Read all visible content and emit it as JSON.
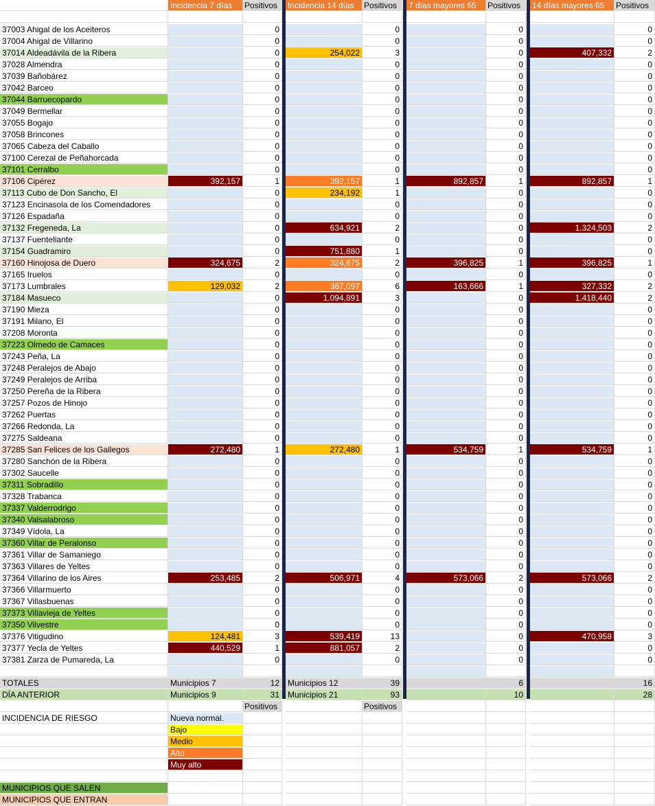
{
  "headers": {
    "inc7": "Incidencia 7 días",
    "pos1": "Positivos",
    "inc14": "Incidencia 14 días",
    "pos2": "Positivos",
    "may7": "7 días mayores 65",
    "pos3": "Positivos",
    "may14": "14 días mayores 65",
    "pos4": "Positivos"
  },
  "colors": {
    "header": "#ed7d31",
    "nueva_normal": "#dce9f5",
    "bajo": "#ffff00",
    "medio": "#ffc000",
    "alto": "#ff7c26",
    "muy_alto": "#7b0000",
    "salen": "#92d050",
    "entran": "#fbe4d5",
    "separator": "#17254f"
  },
  "rows": [
    {
      "name": "37003 Ahigal de los Aceiteros",
      "hl": "",
      "inc7": "",
      "l7": "",
      "p7": "0",
      "inc14": "",
      "l14": "",
      "p14": "0",
      "m7": "",
      "lm7": "",
      "pm7": "0",
      "m14": "",
      "lm14": "",
      "pm14": "0"
    },
    {
      "name": "37004 Ahigal de Villarino",
      "hl": "",
      "inc7": "",
      "l7": "",
      "p7": "0",
      "inc14": "",
      "l14": "",
      "p14": "0",
      "m7": "",
      "lm7": "",
      "pm7": "0",
      "m14": "",
      "lm14": "",
      "pm14": "0"
    },
    {
      "name": "37014 Aldeadávila de la Ribera",
      "hl": "g-light",
      "inc7": "",
      "l7": "",
      "p7": "0",
      "inc14": "254,022",
      "l14": "lvl-medio",
      "p14": "3",
      "m7": "",
      "lm7": "",
      "pm7": "0",
      "m14": "407,332",
      "lm14": "lvl-muyalto",
      "pm14": "2"
    },
    {
      "name": "37028 Almendra",
      "hl": "",
      "inc7": "",
      "l7": "",
      "p7": "0",
      "inc14": "",
      "l14": "",
      "p14": "0",
      "m7": "",
      "lm7": "",
      "pm7": "0",
      "m14": "",
      "lm14": "",
      "pm14": "0"
    },
    {
      "name": "37039 Bañobárez",
      "hl": "",
      "inc7": "",
      "l7": "",
      "p7": "0",
      "inc14": "",
      "l14": "",
      "p14": "0",
      "m7": "",
      "lm7": "",
      "pm7": "0",
      "m14": "",
      "lm14": "",
      "pm14": "0"
    },
    {
      "name": "37042 Barceo",
      "hl": "",
      "inc7": "",
      "l7": "",
      "p7": "0",
      "inc14": "",
      "l14": "",
      "p14": "0",
      "m7": "",
      "lm7": "",
      "pm7": "0",
      "m14": "",
      "lm14": "",
      "pm14": "0"
    },
    {
      "name": "37044 Barruecopardo",
      "hl": "g-dark",
      "inc7": "",
      "l7": "",
      "p7": "0",
      "inc14": "",
      "l14": "",
      "p14": "0",
      "m7": "",
      "lm7": "",
      "pm7": "0",
      "m14": "",
      "lm14": "",
      "pm14": "0"
    },
    {
      "name": "37049 Bermellar",
      "hl": "",
      "inc7": "",
      "l7": "",
      "p7": "0",
      "inc14": "",
      "l14": "",
      "p14": "0",
      "m7": "",
      "lm7": "",
      "pm7": "0",
      "m14": "",
      "lm14": "",
      "pm14": "0"
    },
    {
      "name": "37055 Bogajo",
      "hl": "",
      "inc7": "",
      "l7": "",
      "p7": "0",
      "inc14": "",
      "l14": "",
      "p14": "0",
      "m7": "",
      "lm7": "",
      "pm7": "0",
      "m14": "",
      "lm14": "",
      "pm14": "0"
    },
    {
      "name": "37058 Brincones",
      "hl": "",
      "inc7": "",
      "l7": "",
      "p7": "0",
      "inc14": "",
      "l14": "",
      "p14": "0",
      "m7": "",
      "lm7": "",
      "pm7": "0",
      "m14": "",
      "lm14": "",
      "pm14": "0"
    },
    {
      "name": "37065 Cabeza del Caballo",
      "hl": "",
      "inc7": "",
      "l7": "",
      "p7": "0",
      "inc14": "",
      "l14": "",
      "p14": "0",
      "m7": "",
      "lm7": "",
      "pm7": "0",
      "m14": "",
      "lm14": "",
      "pm14": "0"
    },
    {
      "name": "37100 Cerezal de Peñahorcada",
      "hl": "",
      "inc7": "",
      "l7": "",
      "p7": "0",
      "inc14": "",
      "l14": "",
      "p14": "0",
      "m7": "",
      "lm7": "",
      "pm7": "0",
      "m14": "",
      "lm14": "",
      "pm14": "0"
    },
    {
      "name": "37101 Cerralbo",
      "hl": "g-dark",
      "inc7": "",
      "l7": "",
      "p7": "0",
      "inc14": "",
      "l14": "",
      "p14": "0",
      "m7": "",
      "lm7": "",
      "pm7": "0",
      "m14": "",
      "lm14": "",
      "pm14": "0"
    },
    {
      "name": "37106 Cipérez",
      "hl": "pk",
      "inc7": "392,157",
      "l7": "lvl-muyalto",
      "p7": "1",
      "inc14": "392,157",
      "l14": "lvl-alto",
      "p14": "1",
      "m7": "892,857",
      "lm7": "lvl-muyalto",
      "pm7": "1",
      "m14": "892,857",
      "lm14": "lvl-muyalto",
      "pm14": "1"
    },
    {
      "name": "37113 Cubo de Don Sancho, El",
      "hl": "g-light",
      "inc7": "",
      "l7": "",
      "p7": "0",
      "inc14": "234,192",
      "l14": "lvl-medio",
      "p14": "1",
      "m7": "",
      "lm7": "",
      "pm7": "0",
      "m14": "",
      "lm14": "",
      "pm14": "0"
    },
    {
      "name": "37123 Encinasola de los Comendadores",
      "hl": "",
      "inc7": "",
      "l7": "",
      "p7": "0",
      "inc14": "",
      "l14": "",
      "p14": "0",
      "m7": "",
      "lm7": "",
      "pm7": "0",
      "m14": "",
      "lm14": "",
      "pm14": "0"
    },
    {
      "name": "37126 Espadaña",
      "hl": "",
      "inc7": "",
      "l7": "",
      "p7": "0",
      "inc14": "",
      "l14": "",
      "p14": "0",
      "m7": "",
      "lm7": "",
      "pm7": "0",
      "m14": "",
      "lm14": "",
      "pm14": "0"
    },
    {
      "name": "37132 Fregeneda, La",
      "hl": "g-light",
      "inc7": "",
      "l7": "",
      "p7": "0",
      "inc14": "634,921",
      "l14": "lvl-muyalto",
      "p14": "2",
      "m7": "",
      "lm7": "",
      "pm7": "0",
      "m14": "1.324,503",
      "lm14": "lvl-muyalto",
      "pm14": "2"
    },
    {
      "name": "37137 Fuenteliante",
      "hl": "",
      "inc7": "",
      "l7": "",
      "p7": "0",
      "inc14": "",
      "l14": "",
      "p14": "0",
      "m7": "",
      "lm7": "",
      "pm7": "0",
      "m14": "",
      "lm14": "",
      "pm14": "0"
    },
    {
      "name": "37154 Guadramiro",
      "hl": "g-light",
      "inc7": "",
      "l7": "",
      "p7": "0",
      "inc14": "751,880",
      "l14": "lvl-muyalto",
      "p14": "1",
      "m7": "",
      "lm7": "",
      "pm7": "0",
      "m14": "",
      "lm14": "",
      "pm14": "0"
    },
    {
      "name": "37160 Hinojosa de Duero",
      "hl": "pk",
      "inc7": "324,675",
      "l7": "lvl-muyalto",
      "p7": "2",
      "inc14": "324,675",
      "l14": "lvl-alto",
      "p14": "2",
      "m7": "396,825",
      "lm7": "lvl-muyalto",
      "pm7": "1",
      "m14": "396,825",
      "lm14": "lvl-muyalto",
      "pm14": "1"
    },
    {
      "name": "37165 Iruelos",
      "hl": "",
      "inc7": "",
      "l7": "",
      "p7": "0",
      "inc14": "",
      "l14": "",
      "p14": "0",
      "m7": "",
      "lm7": "",
      "pm7": "0",
      "m14": "",
      "lm14": "",
      "pm14": "0"
    },
    {
      "name": "37173 Lumbrales",
      "hl": "",
      "inc7": "129,032",
      "l7": "lvl-medio",
      "p7": "2",
      "inc14": "387,097",
      "l14": "lvl-alto",
      "p14": "6",
      "m7": "163,666",
      "lm7": "lvl-muyalto",
      "pm7": "1",
      "m14": "327,332",
      "lm14": "lvl-muyalto",
      "pm14": "2"
    },
    {
      "name": "37184 Masueco",
      "hl": "g-light",
      "inc7": "",
      "l7": "",
      "p7": "0",
      "inc14": "1.094,891",
      "l14": "lvl-muyalto",
      "p14": "3",
      "m7": "",
      "lm7": "",
      "pm7": "0",
      "m14": "1.418,440",
      "lm14": "lvl-muyalto",
      "pm14": "2"
    },
    {
      "name": "37190 Mieza",
      "hl": "",
      "inc7": "",
      "l7": "",
      "p7": "0",
      "inc14": "",
      "l14": "",
      "p14": "0",
      "m7": "",
      "lm7": "",
      "pm7": "0",
      "m14": "",
      "lm14": "",
      "pm14": "0"
    },
    {
      "name": "37191 Milano, El",
      "hl": "",
      "inc7": "",
      "l7": "",
      "p7": "0",
      "inc14": "",
      "l14": "",
      "p14": "0",
      "m7": "",
      "lm7": "",
      "pm7": "0",
      "m14": "",
      "lm14": "",
      "pm14": "0"
    },
    {
      "name": "37208 Moronta",
      "hl": "",
      "inc7": "",
      "l7": "",
      "p7": "0",
      "inc14": "",
      "l14": "",
      "p14": "0",
      "m7": "",
      "lm7": "",
      "pm7": "0",
      "m14": "",
      "lm14": "",
      "pm14": "0"
    },
    {
      "name": "37223 Olmedo de Camaces",
      "hl": "g-dark",
      "inc7": "",
      "l7": "",
      "p7": "0",
      "inc14": "",
      "l14": "",
      "p14": "0",
      "m7": "",
      "lm7": "",
      "pm7": "0",
      "m14": "",
      "lm14": "",
      "pm14": "0"
    },
    {
      "name": "37243 Peña, La",
      "hl": "",
      "inc7": "",
      "l7": "",
      "p7": "0",
      "inc14": "",
      "l14": "",
      "p14": "0",
      "m7": "",
      "lm7": "",
      "pm7": "0",
      "m14": "",
      "lm14": "",
      "pm14": "0"
    },
    {
      "name": "37248 Peralejos de Abajo",
      "hl": "",
      "inc7": "",
      "l7": "",
      "p7": "0",
      "inc14": "",
      "l14": "",
      "p14": "0",
      "m7": "",
      "lm7": "",
      "pm7": "0",
      "m14": "",
      "lm14": "",
      "pm14": "0"
    },
    {
      "name": "37249 Peralejos de Arriba",
      "hl": "",
      "inc7": "",
      "l7": "",
      "p7": "0",
      "inc14": "",
      "l14": "",
      "p14": "0",
      "m7": "",
      "lm7": "",
      "pm7": "0",
      "m14": "",
      "lm14": "",
      "pm14": "0"
    },
    {
      "name": "37250 Pereña de la Ribera",
      "hl": "",
      "inc7": "",
      "l7": "",
      "p7": "0",
      "inc14": "",
      "l14": "",
      "p14": "0",
      "m7": "",
      "lm7": "",
      "pm7": "0",
      "m14": "",
      "lm14": "",
      "pm14": "0"
    },
    {
      "name": "37257 Pozos de Hinojo",
      "hl": "",
      "inc7": "",
      "l7": "",
      "p7": "0",
      "inc14": "",
      "l14": "",
      "p14": "0",
      "m7": "",
      "lm7": "",
      "pm7": "0",
      "m14": "",
      "lm14": "",
      "pm14": "0"
    },
    {
      "name": "37262 Puertas",
      "hl": "",
      "inc7": "",
      "l7": "",
      "p7": "0",
      "inc14": "",
      "l14": "",
      "p14": "0",
      "m7": "",
      "lm7": "",
      "pm7": "0",
      "m14": "",
      "lm14": "",
      "pm14": "0"
    },
    {
      "name": "37266 Redonda, La",
      "hl": "",
      "inc7": "",
      "l7": "",
      "p7": "0",
      "inc14": "",
      "l14": "",
      "p14": "0",
      "m7": "",
      "lm7": "",
      "pm7": "0",
      "m14": "",
      "lm14": "",
      "pm14": "0"
    },
    {
      "name": "37275 Saldeana",
      "hl": "",
      "inc7": "",
      "l7": "",
      "p7": "0",
      "inc14": "",
      "l14": "",
      "p14": "0",
      "m7": "",
      "lm7": "",
      "pm7": "0",
      "m14": "",
      "lm14": "",
      "pm14": "0"
    },
    {
      "name": "37285 San Felices de los Gallegos",
      "hl": "pk",
      "inc7": "272,480",
      "l7": "lvl-muyalto",
      "p7": "1",
      "inc14": "272,480",
      "l14": "lvl-medio",
      "p14": "1",
      "m7": "534,759",
      "lm7": "lvl-muyalto",
      "pm7": "1",
      "m14": "534,759",
      "lm14": "lvl-muyalto",
      "pm14": "1"
    },
    {
      "name": "37280 Sanchón de la Ribera",
      "hl": "",
      "inc7": "",
      "l7": "",
      "p7": "0",
      "inc14": "",
      "l14": "",
      "p14": "0",
      "m7": "",
      "lm7": "",
      "pm7": "0",
      "m14": "",
      "lm14": "",
      "pm14": "0"
    },
    {
      "name": "37302 Saucelle",
      "hl": "",
      "inc7": "",
      "l7": "",
      "p7": "0",
      "inc14": "",
      "l14": "",
      "p14": "0",
      "m7": "",
      "lm7": "",
      "pm7": "0",
      "m14": "",
      "lm14": "",
      "pm14": "0"
    },
    {
      "name": "37311 Sobradillo",
      "hl": "g-dark",
      "inc7": "",
      "l7": "",
      "p7": "0",
      "inc14": "",
      "l14": "",
      "p14": "0",
      "m7": "",
      "lm7": "",
      "pm7": "0",
      "m14": "",
      "lm14": "",
      "pm14": "0"
    },
    {
      "name": "37328 Trabanca",
      "hl": "",
      "inc7": "",
      "l7": "",
      "p7": "0",
      "inc14": "",
      "l14": "",
      "p14": "0",
      "m7": "",
      "lm7": "",
      "pm7": "0",
      "m14": "",
      "lm14": "",
      "pm14": "0"
    },
    {
      "name": "37337 Valderrodrigo",
      "hl": "g-dark",
      "inc7": "",
      "l7": "",
      "p7": "0",
      "inc14": "",
      "l14": "",
      "p14": "0",
      "m7": "",
      "lm7": "",
      "pm7": "0",
      "m14": "",
      "lm14": "",
      "pm14": "0"
    },
    {
      "name": "37340 Valsalabroso",
      "hl": "g-dark",
      "inc7": "",
      "l7": "",
      "p7": "0",
      "inc14": "",
      "l14": "",
      "p14": "0",
      "m7": "",
      "lm7": "",
      "pm7": "0",
      "m14": "",
      "lm14": "",
      "pm14": "0"
    },
    {
      "name": "37349 Vídola, La",
      "hl": "",
      "inc7": "",
      "l7": "",
      "p7": "0",
      "inc14": "",
      "l14": "",
      "p14": "0",
      "m7": "",
      "lm7": "",
      "pm7": "0",
      "m14": "",
      "lm14": "",
      "pm14": "0"
    },
    {
      "name": "37360 Villar de Peralonso",
      "hl": "g-dark",
      "inc7": "",
      "l7": "",
      "p7": "0",
      "inc14": "",
      "l14": "",
      "p14": "0",
      "m7": "",
      "lm7": "",
      "pm7": "0",
      "m14": "",
      "lm14": "",
      "pm14": "0"
    },
    {
      "name": "37361 Villar de Samaniego",
      "hl": "",
      "inc7": "",
      "l7": "",
      "p7": "0",
      "inc14": "",
      "l14": "",
      "p14": "0",
      "m7": "",
      "lm7": "",
      "pm7": "0",
      "m14": "",
      "lm14": "",
      "pm14": "0"
    },
    {
      "name": "37363 Villares de Yeltes",
      "hl": "",
      "inc7": "",
      "l7": "",
      "p7": "0",
      "inc14": "",
      "l14": "",
      "p14": "0",
      "m7": "",
      "lm7": "",
      "pm7": "0",
      "m14": "",
      "lm14": "",
      "pm14": "0"
    },
    {
      "name": "37364 Villarino de los Aires",
      "hl": "",
      "inc7": "253,485",
      "l7": "lvl-muyalto",
      "p7": "2",
      "inc14": "506,971",
      "l14": "lvl-muyalto",
      "p14": "4",
      "m7": "573,066",
      "lm7": "lvl-muyalto",
      "pm7": "2",
      "m14": "573,066",
      "lm14": "lvl-muyalto",
      "pm14": "2"
    },
    {
      "name": "37366 Villarmuerto",
      "hl": "",
      "inc7": "",
      "l7": "",
      "p7": "0",
      "inc14": "",
      "l14": "",
      "p14": "0",
      "m7": "",
      "lm7": "",
      "pm7": "0",
      "m14": "",
      "lm14": "",
      "pm14": "0"
    },
    {
      "name": "37367 Villasbuenas",
      "hl": "",
      "inc7": "",
      "l7": "",
      "p7": "0",
      "inc14": "",
      "l14": "",
      "p14": "0",
      "m7": "",
      "lm7": "",
      "pm7": "0",
      "m14": "",
      "lm14": "",
      "pm14": "0"
    },
    {
      "name": "37373 Villavieja de Yeltes",
      "hl": "g-dark",
      "inc7": "",
      "l7": "",
      "p7": "0",
      "inc14": "",
      "l14": "",
      "p14": "0",
      "m7": "",
      "lm7": "",
      "pm7": "0",
      "m14": "",
      "lm14": "",
      "pm14": "0"
    },
    {
      "name": "37350 Vilvestre",
      "hl": "g-dark",
      "inc7": "",
      "l7": "",
      "p7": "0",
      "inc14": "",
      "l14": "",
      "p14": "0",
      "m7": "",
      "lm7": "",
      "pm7": "0",
      "m14": "",
      "lm14": "",
      "pm14": "0"
    },
    {
      "name": "37376 Vitigudino",
      "hl": "",
      "inc7": "124,481",
      "l7": "lvl-medio",
      "p7": "3",
      "inc14": "539,419",
      "l14": "lvl-muyalto",
      "p14": "13",
      "m7": "",
      "lm7": "",
      "pm7": "0",
      "m14": "470,958",
      "lm14": "lvl-muyalto",
      "pm14": "3"
    },
    {
      "name": "37377 Yecla de Yeltes",
      "hl": "",
      "inc7": "440,529",
      "l7": "lvl-muyalto",
      "p7": "1",
      "inc14": "881,057",
      "l14": "lvl-muyalto",
      "p14": "2",
      "m7": "",
      "lm7": "",
      "pm7": "0",
      "m14": "",
      "lm14": "",
      "pm14": "0"
    },
    {
      "name": "37381 Zarza de Pumareda, La",
      "hl": "",
      "inc7": "",
      "l7": "",
      "p7": "0",
      "inc14": "",
      "l14": "",
      "p14": "0",
      "m7": "",
      "lm7": "",
      "pm7": "0",
      "m14": "",
      "lm14": "",
      "pm14": "0"
    }
  ],
  "totales": {
    "label": "TOTALES",
    "muni7": "Municipios 7",
    "pos7": "12",
    "muni14": "Municipios 12",
    "pos14": "39",
    "pm7": "6",
    "pm14": "16"
  },
  "dia_anterior": {
    "label": "DÍA ANTERIOR",
    "muni7": "Municipios 9",
    "pos7": "31",
    "muni14": "Municipios 21",
    "pos14": "93",
    "pm7": "10",
    "pm14": "28"
  },
  "sub_headers": {
    "pos1": "Positivos",
    "pos2": "Positivos"
  },
  "legend": {
    "title": "INCIDENCIA DE RIESGO",
    "nueva": "Nueva normal.",
    "bajo": "Bajo",
    "medio": "Medio",
    "alto": "Alto",
    "muy_alto": "Muy alto"
  },
  "footer": {
    "salen": "MUNICIPIOS QUE SALEN",
    "entran": "MUNICIPIOS QUE ENTRAN"
  }
}
